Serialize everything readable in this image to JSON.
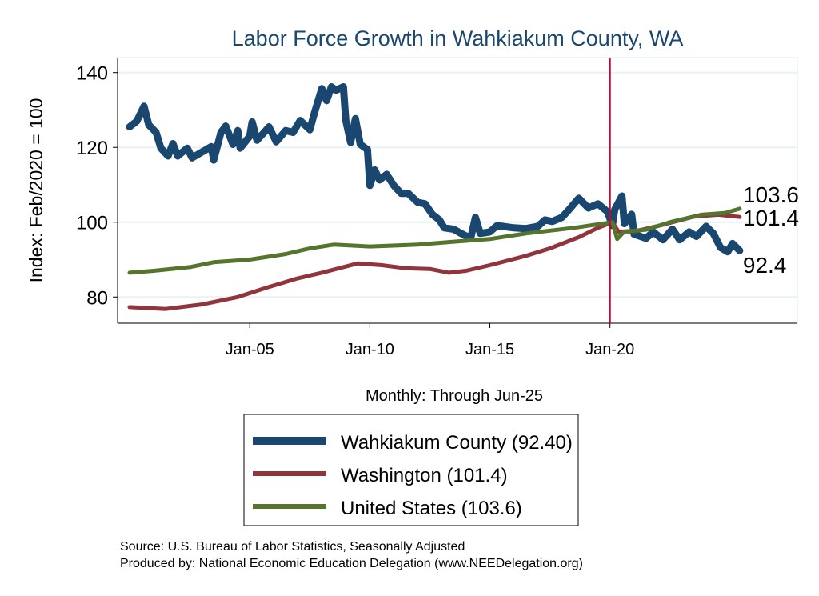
{
  "chart_data": {
    "type": "line",
    "title": "Labor Force Growth in Wahkiakum  County, WA",
    "xlabel": "Monthly: Through Jun-25",
    "ylabel": "Index: Feb/2020 = 100",
    "xlim": [
      1999.5,
      2027.8
    ],
    "ylim": [
      73,
      144
    ],
    "x_ticks": [
      {
        "value": 2005,
        "label": "Jan-05"
      },
      {
        "value": 2010,
        "label": "Jan-10"
      },
      {
        "value": 2015,
        "label": "Jan-15"
      },
      {
        "value": 2020,
        "label": "Jan-20"
      }
    ],
    "y_ticks": [
      80,
      100,
      120,
      140
    ],
    "grid": true,
    "reference_line": {
      "x": 2020.0,
      "color": "#c10534"
    },
    "legend_position": "bottom",
    "series": [
      {
        "name": "Wahkiakum  County (92.40)",
        "end_label": "92.4",
        "color": "#1a476f",
        "points": [
          [
            2000.0,
            125.5
          ],
          [
            2000.3,
            127
          ],
          [
            2000.6,
            131
          ],
          [
            2000.8,
            126
          ],
          [
            2001.1,
            124
          ],
          [
            2001.3,
            119.8
          ],
          [
            2001.6,
            117.7
          ],
          [
            2001.8,
            121
          ],
          [
            2002.0,
            117.7
          ],
          [
            2002.4,
            119.8
          ],
          [
            2002.6,
            117.2
          ],
          [
            2003.0,
            118.7
          ],
          [
            2003.4,
            120.2
          ],
          [
            2003.5,
            116.6
          ],
          [
            2003.8,
            124
          ],
          [
            2004.0,
            125.7
          ],
          [
            2004.3,
            120.8
          ],
          [
            2004.5,
            124.5
          ],
          [
            2004.6,
            119.8
          ],
          [
            2005.0,
            123
          ],
          [
            2005.1,
            126.8
          ],
          [
            2005.3,
            121.9
          ],
          [
            2005.6,
            124
          ],
          [
            2005.8,
            125.5
          ],
          [
            2006.1,
            121.5
          ],
          [
            2006.5,
            124.5
          ],
          [
            2006.8,
            124
          ],
          [
            2007.1,
            127.2
          ],
          [
            2007.5,
            124.7
          ],
          [
            2007.7,
            129.4
          ],
          [
            2008.0,
            135.7
          ],
          [
            2008.2,
            132.5
          ],
          [
            2008.4,
            136.2
          ],
          [
            2008.6,
            135.3
          ],
          [
            2008.9,
            136.2
          ],
          [
            2009.0,
            127.2
          ],
          [
            2009.2,
            121.3
          ],
          [
            2009.4,
            127.7
          ],
          [
            2009.6,
            120.8
          ],
          [
            2009.9,
            119.4
          ],
          [
            2010.0,
            109.8
          ],
          [
            2010.2,
            114
          ],
          [
            2010.4,
            111.3
          ],
          [
            2010.7,
            112.8
          ],
          [
            2011.0,
            109.8
          ],
          [
            2011.3,
            107.7
          ],
          [
            2011.6,
            107.7
          ],
          [
            2012.0,
            105.3
          ],
          [
            2012.3,
            104.9
          ],
          [
            2012.6,
            102.1
          ],
          [
            2012.9,
            100.6
          ],
          [
            2013.1,
            98.5
          ],
          [
            2013.5,
            98.1
          ],
          [
            2013.8,
            97
          ],
          [
            2014.2,
            95.7
          ],
          [
            2014.4,
            101.3
          ],
          [
            2014.6,
            97
          ],
          [
            2015.0,
            97.4
          ],
          [
            2015.3,
            99.1
          ],
          [
            2016.0,
            98.5
          ],
          [
            2016.5,
            98.3
          ],
          [
            2017.0,
            98.9
          ],
          [
            2017.3,
            100.6
          ],
          [
            2017.6,
            100.2
          ],
          [
            2018.0,
            101.3
          ],
          [
            2018.3,
            103.4
          ],
          [
            2018.7,
            106.4
          ],
          [
            2019.1,
            103.8
          ],
          [
            2019.5,
            104.9
          ],
          [
            2019.9,
            102.8
          ],
          [
            2020.1,
            99.1
          ],
          [
            2020.2,
            103.4
          ],
          [
            2020.5,
            107
          ],
          [
            2020.6,
            99.6
          ],
          [
            2020.9,
            102.1
          ],
          [
            2021.0,
            96.8
          ],
          [
            2021.5,
            95.7
          ],
          [
            2021.8,
            97.4
          ],
          [
            2022.2,
            95.3
          ],
          [
            2022.6,
            98.1
          ],
          [
            2022.9,
            95.3
          ],
          [
            2023.3,
            97.4
          ],
          [
            2023.6,
            96.2
          ],
          [
            2024.0,
            98.9
          ],
          [
            2024.3,
            97
          ],
          [
            2024.6,
            93.2
          ],
          [
            2024.9,
            92.1
          ],
          [
            2025.1,
            94.3
          ],
          [
            2025.4,
            92.4
          ]
        ]
      },
      {
        "name": "Washington (101.4)",
        "end_label": "101.4",
        "color": "#90353b",
        "points": [
          [
            2000.0,
            77.3
          ],
          [
            2001.5,
            76.8
          ],
          [
            2003.0,
            78
          ],
          [
            2004.5,
            80
          ],
          [
            2005.7,
            82.5
          ],
          [
            2007.0,
            85
          ],
          [
            2008.0,
            86.5
          ],
          [
            2009.5,
            89
          ],
          [
            2010.5,
            88.5
          ],
          [
            2011.5,
            87.7
          ],
          [
            2012.5,
            87.5
          ],
          [
            2013.3,
            86.5
          ],
          [
            2014.0,
            87
          ],
          [
            2015.0,
            88.5
          ],
          [
            2016.5,
            91
          ],
          [
            2017.5,
            93
          ],
          [
            2018.7,
            96
          ],
          [
            2019.5,
            98.5
          ],
          [
            2020.1,
            100
          ],
          [
            2020.35,
            97.5
          ],
          [
            2021.0,
            97.5
          ],
          [
            2022.0,
            99
          ],
          [
            2023.5,
            101.5
          ],
          [
            2024.5,
            102
          ],
          [
            2025.4,
            101.4
          ]
        ]
      },
      {
        "name": "United States (103.6)",
        "end_label": "103.6",
        "color": "#55752f",
        "points": [
          [
            2000.0,
            86.5
          ],
          [
            2001.0,
            87
          ],
          [
            2002.5,
            88
          ],
          [
            2003.5,
            89.3
          ],
          [
            2005.0,
            90
          ],
          [
            2006.5,
            91.5
          ],
          [
            2007.5,
            93
          ],
          [
            2008.5,
            94
          ],
          [
            2010.0,
            93.5
          ],
          [
            2012.0,
            94
          ],
          [
            2013.5,
            94.8
          ],
          [
            2015.0,
            95.5
          ],
          [
            2016.5,
            97
          ],
          [
            2018.5,
            98.5
          ],
          [
            2020.1,
            100
          ],
          [
            2020.3,
            95.5
          ],
          [
            2020.6,
            97.5
          ],
          [
            2021.5,
            98
          ],
          [
            2022.5,
            100
          ],
          [
            2023.8,
            102
          ],
          [
            2024.8,
            102.5
          ],
          [
            2025.4,
            103.6
          ]
        ]
      }
    ]
  },
  "footer": {
    "source": "Source: U.S. Bureau of Labor Statistics, Seasonally Adjusted",
    "produced": "Produced by: National Economic Education Delegation (www.NEEDelegation.org)"
  }
}
